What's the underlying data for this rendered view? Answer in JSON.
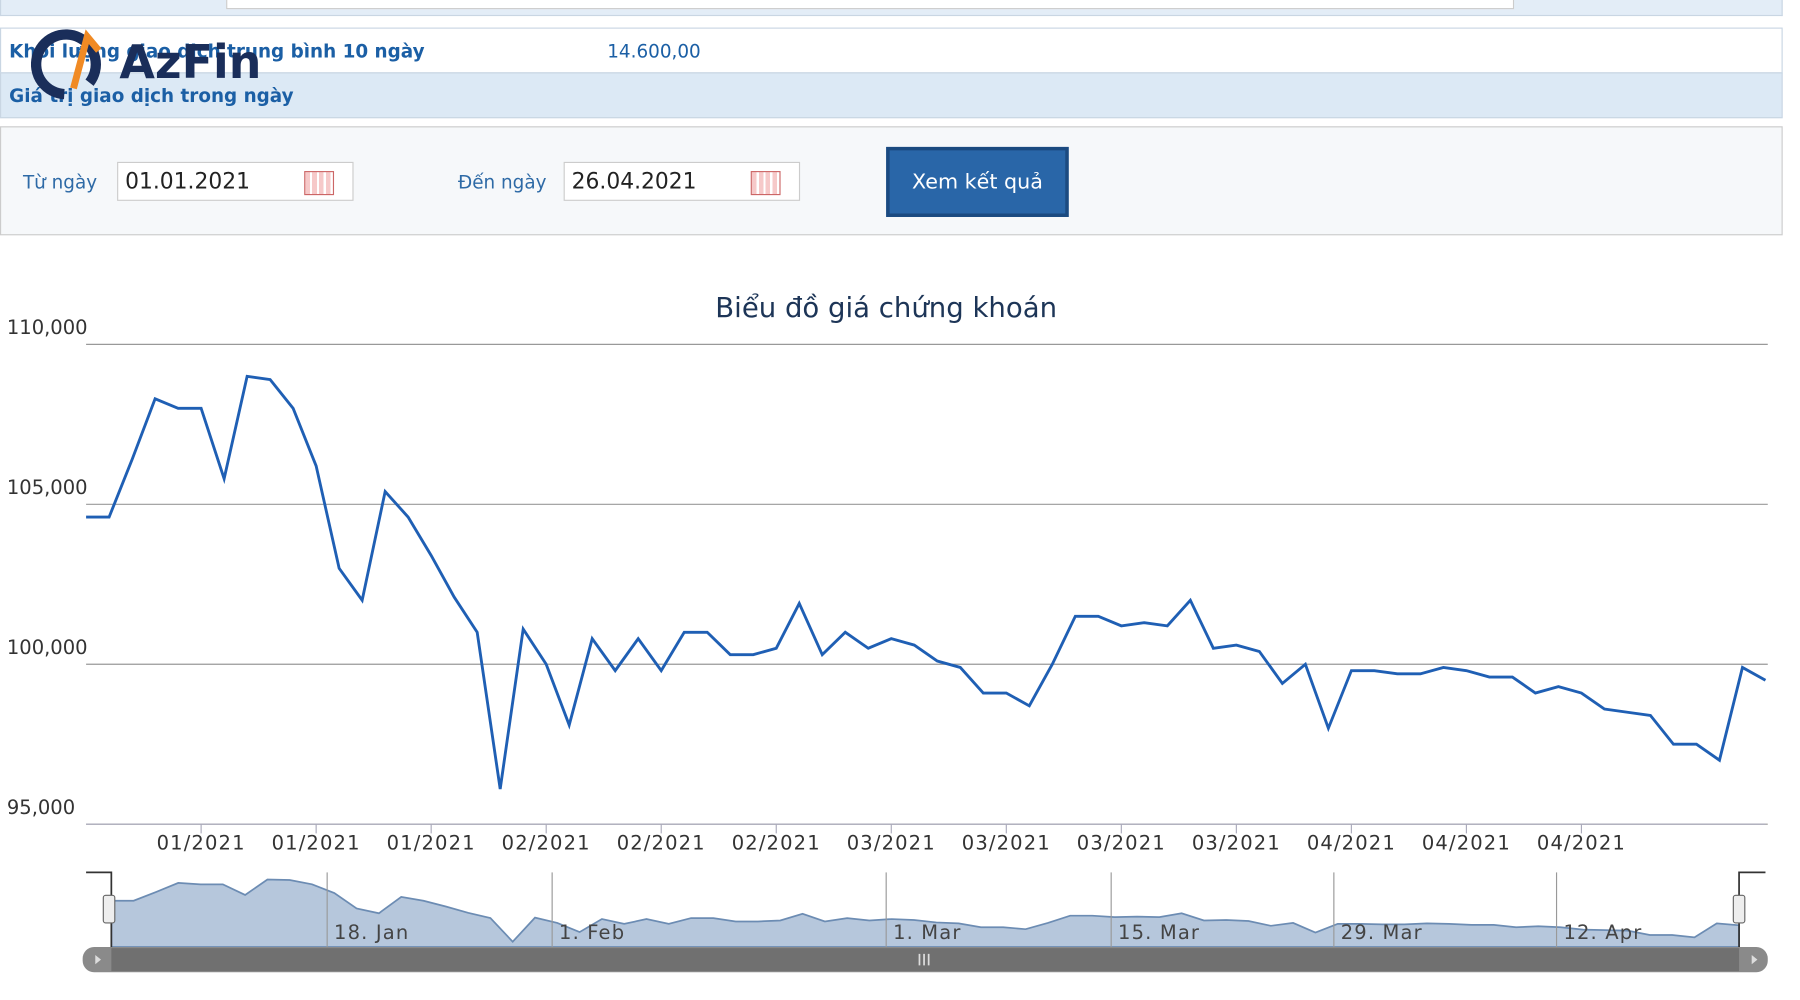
{
  "logo": "AzFin",
  "info_rows": [
    {
      "label": "Khối lượng giao dịch trung bình 10 ngày",
      "value": "14.600,00"
    },
    {
      "label": "Giá trị giao dịch trong ngày"
    }
  ],
  "form": {
    "from_label": "Từ ngày",
    "from_value": "01.01.2021",
    "to_label": "Đến ngày",
    "to_value": "26.04.2021",
    "button": "Xem kết quả"
  },
  "chart_data": {
    "type": "line",
    "title": "Biểu đồ giá chứng khoán",
    "categories": [
      null,
      null,
      null,
      null,
      null,
      "01/2021",
      null,
      null,
      null,
      null,
      "01/2021",
      null,
      null,
      null,
      null,
      "01/2021",
      null,
      null,
      null,
      null,
      "02/2021",
      null,
      null,
      null,
      null,
      "02/2021",
      null,
      null,
      null,
      null,
      "02/2021",
      null,
      null,
      null,
      null,
      "03/2021",
      null,
      null,
      null,
      null,
      "03/2021",
      null,
      null,
      null,
      null,
      "03/2021",
      null,
      null,
      null,
      null,
      "03/2021",
      null,
      null,
      null,
      null,
      "04/2021",
      null,
      null,
      null,
      null,
      "04/2021",
      null,
      null,
      null,
      null,
      "04/2021",
      null,
      null,
      null,
      null,
      null,
      null,
      null,
      null
    ],
    "series": [
      {
        "color": "#1f5fb4",
        "values": [
          104600,
          104600,
          106400,
          108300,
          108000,
          108000,
          105800,
          109000,
          108900,
          108000,
          106200,
          103000,
          102000,
          105400,
          104600,
          103400,
          102100,
          101000,
          96100,
          101100,
          100000,
          98100,
          100800,
          99800,
          100800,
          99800,
          101000,
          101000,
          100300,
          100300,
          100500,
          101900,
          100300,
          101000,
          100500,
          100800,
          100600,
          100100,
          99900,
          99100,
          99100,
          98700,
          100000,
          101500,
          101500,
          101200,
          101300,
          101200,
          102000,
          100500,
          100600,
          100400,
          99400,
          100000,
          98000,
          99800,
          99800,
          99700,
          99700,
          99900,
          99800,
          99600,
          99600,
          99100,
          99300,
          99100,
          98600,
          98500,
          98400,
          97500,
          97500,
          97000,
          99900,
          99500
        ]
      }
    ],
    "ylim": [
      95000,
      110000
    ],
    "yticks": [
      {
        "value": 95000,
        "label": "95,000"
      },
      {
        "value": 100000,
        "label": "100,000"
      },
      {
        "value": 105000,
        "label": "105,000"
      },
      {
        "value": 110000,
        "label": "110,000"
      }
    ],
    "grid": true
  },
  "navigator": {
    "labels": [
      "18. Jan",
      "1. Feb",
      "1. Mar",
      "15. Mar",
      "29. Mar",
      "12. Apr"
    ]
  }
}
